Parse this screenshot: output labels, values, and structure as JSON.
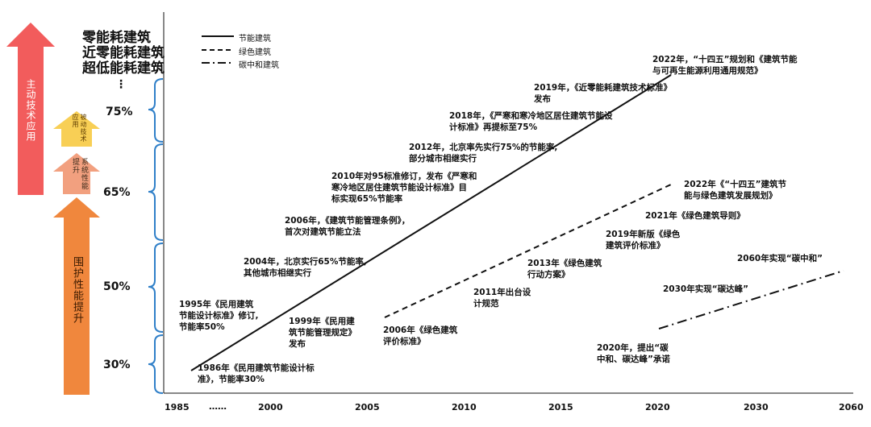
{
  "left_arrows": [
    {
      "label": "主动技术应用",
      "color": "#f25c5c"
    },
    {
      "label": "被动技术应用",
      "color": "#f8cf55"
    },
    {
      "label": "系统性能提升",
      "color": "#f2a07f"
    },
    {
      "label": "围护性能提升",
      "color": "#f0873d"
    }
  ],
  "headings": [
    "零能耗建筑",
    "近零能耗建筑",
    "超低能耗建筑"
  ],
  "ellipsis_vertical": "⋮",
  "percent_labels": [
    "75%",
    "65%",
    "50%",
    "30%"
  ],
  "legend": [
    {
      "label": "节能建筑",
      "style": "solid"
    },
    {
      "label": "绿色建筑",
      "style": "dashed"
    },
    {
      "label": "碳中和建筑",
      "style": "dashdot"
    }
  ],
  "axis": {
    "years": [
      "1985",
      "……",
      "2000",
      "2005",
      "2010",
      "2015",
      "2020",
      "2030",
      "2060"
    ]
  },
  "annotations": [
    {
      "text": "1986年《民用建筑节能设计标\n准》，节能率30%"
    },
    {
      "text": "1995年《民用建筑\n节能设计标准》修订,\n节能率50%"
    },
    {
      "text": "1999年《民用建\n筑节能管理规定》\n发布"
    },
    {
      "text": "2004年，北京实行65%节能率,\n其他城市相继实行"
    },
    {
      "text": "2006年，《建筑节能管理条例》，\n首次对建筑节能立法"
    },
    {
      "text": "2010年对95标准修订，发布《严寒和\n寒冷地区居住建筑节能设计标准》目\n标实现65%节能率"
    },
    {
      "text": "2012年，北京率先实行75%的节能率,\n部分城市相继实行"
    },
    {
      "text": "2018年，《严寒和寒冷地区居住建筑节能设\n计标准》再提标至75%"
    },
    {
      "text": "2019年，《近零能耗建筑技术标准》\n发布"
    },
    {
      "text": "2022年，“十四五”规划和《建筑节能\n与可再生能源利用通用规范》"
    },
    {
      "text": "2006年《绿色建筑\n评价标准》"
    },
    {
      "text": "2011年出台设\n计规范"
    },
    {
      "text": "2013年《绿色建筑\n行动方案》"
    },
    {
      "text": "2019年新版《绿色\n建筑评价标准》"
    },
    {
      "text": "2021年《绿色建筑导则》"
    },
    {
      "text": "2022年《“十四五”建筑节\n能与绿色建筑发展规划》"
    },
    {
      "text": "2060年实现“碳中和”"
    },
    {
      "text": "2030年实现“碳达峰”"
    },
    {
      "text": "2020年，提出“碳\n中和、碳达峰”承诺"
    }
  ]
}
